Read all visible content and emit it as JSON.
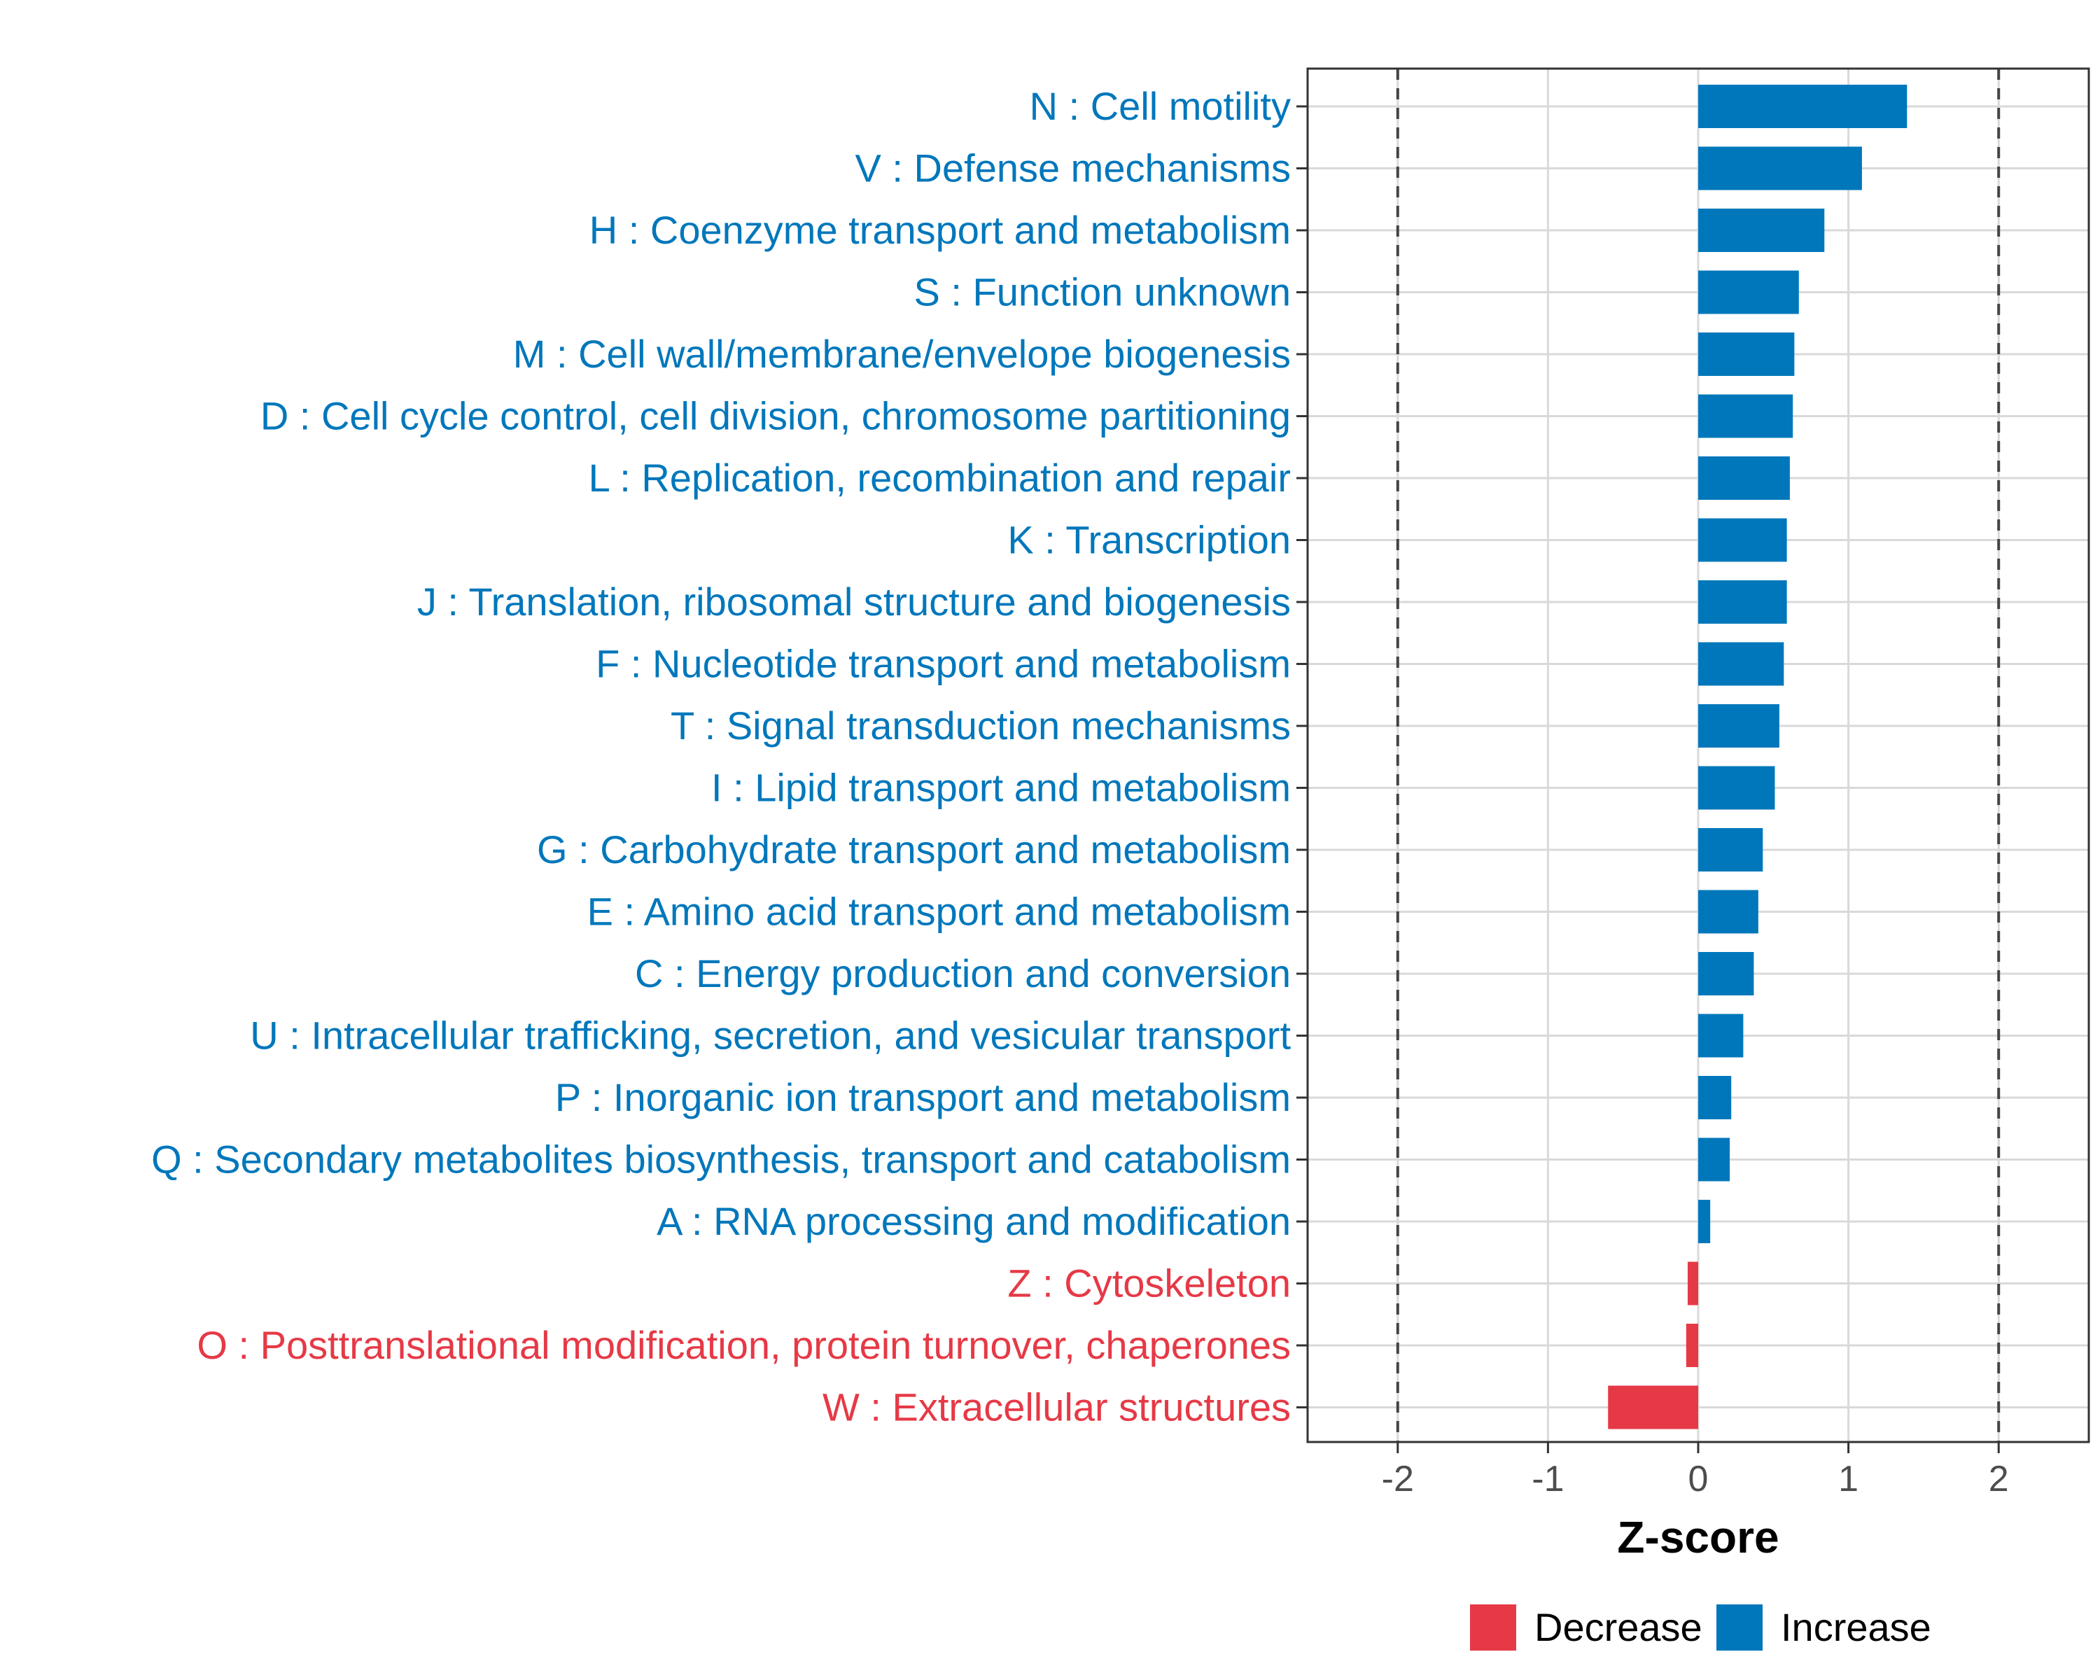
{
  "colors": {
    "increase": "#0077bb",
    "decrease": "#e63946",
    "grid": "#d9d9d9",
    "refline": "#444444"
  },
  "chart_data": {
    "type": "bar",
    "orientation": "horizontal",
    "categories": [
      "N : Cell motility",
      "V : Defense mechanisms",
      "H : Coenzyme transport and metabolism",
      "S : Function unknown",
      "M : Cell wall/membrane/envelope biogenesis",
      "D : Cell cycle control, cell division, chromosome partitioning",
      "L : Replication, recombination and repair",
      "K : Transcription",
      "J : Translation, ribosomal structure and biogenesis",
      "F : Nucleotide transport and metabolism",
      "T : Signal transduction mechanisms",
      "I : Lipid transport and metabolism",
      "G : Carbohydrate transport and metabolism",
      "E : Amino acid transport and metabolism",
      "C : Energy production and conversion",
      "U : Intracellular trafficking, secretion, and vesicular transport",
      "P : Inorganic ion transport and metabolism",
      "Q : Secondary metabolites biosynthesis, transport and catabolism",
      "A : RNA processing and modification",
      "Z : Cytoskeleton",
      "O : Posttranslational modification, protein turnover, chaperones",
      "W : Extracellular structures"
    ],
    "values": [
      1.39,
      1.09,
      0.84,
      0.67,
      0.64,
      0.63,
      0.61,
      0.59,
      0.59,
      0.57,
      0.54,
      0.51,
      0.43,
      0.4,
      0.37,
      0.3,
      0.22,
      0.21,
      0.08,
      -0.07,
      -0.08,
      -0.6
    ],
    "direction": [
      "Increase",
      "Increase",
      "Increase",
      "Increase",
      "Increase",
      "Increase",
      "Increase",
      "Increase",
      "Increase",
      "Increase",
      "Increase",
      "Increase",
      "Increase",
      "Increase",
      "Increase",
      "Increase",
      "Increase",
      "Increase",
      "Increase",
      "Decrease",
      "Decrease",
      "Decrease"
    ],
    "xlabel": "Z-score",
    "xlim": [
      -2.6,
      2.6
    ],
    "xticks": [
      -2,
      -1,
      0,
      1,
      2
    ],
    "xtick_labels": [
      "-2",
      "-1",
      "0",
      "1",
      "2"
    ],
    "reference_lines": [
      -2,
      2
    ],
    "grid": true,
    "legend": {
      "placement": "bottom",
      "entries": [
        {
          "label": "Decrease",
          "key": "decrease"
        },
        {
          "label": "Increase",
          "key": "increase"
        }
      ]
    }
  }
}
